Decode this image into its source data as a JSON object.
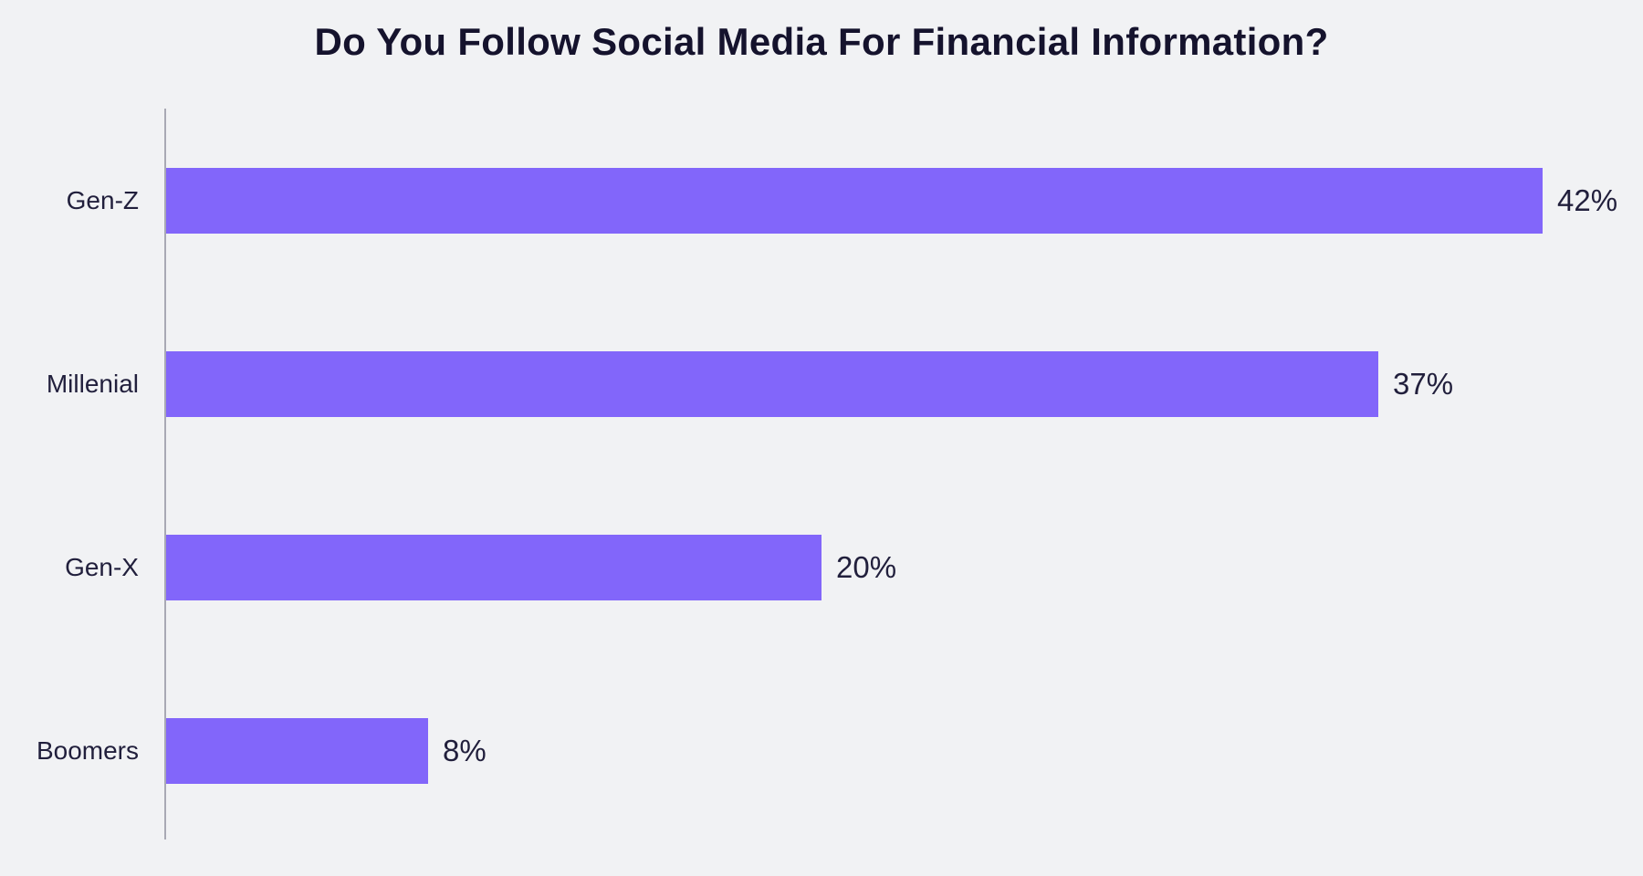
{
  "chart_data": {
    "type": "bar",
    "orientation": "horizontal",
    "title": "Do You Follow Social Media For Financial Information?",
    "categories": [
      "Gen-Z",
      "Millenial",
      "Gen-X",
      "Boomers"
    ],
    "values": [
      42,
      37,
      20,
      8
    ],
    "value_labels": [
      "42%",
      "37%",
      "20%",
      "8%"
    ],
    "xlabel": "",
    "ylabel": "",
    "xlim": [
      0,
      45
    ],
    "grid": false,
    "legend": false,
    "bar_color": "#8266FA",
    "background_color": "#F1F2F4",
    "title_color": "#15132D",
    "label_color": "#211F3C",
    "axis_color": "#A9A9B4"
  }
}
